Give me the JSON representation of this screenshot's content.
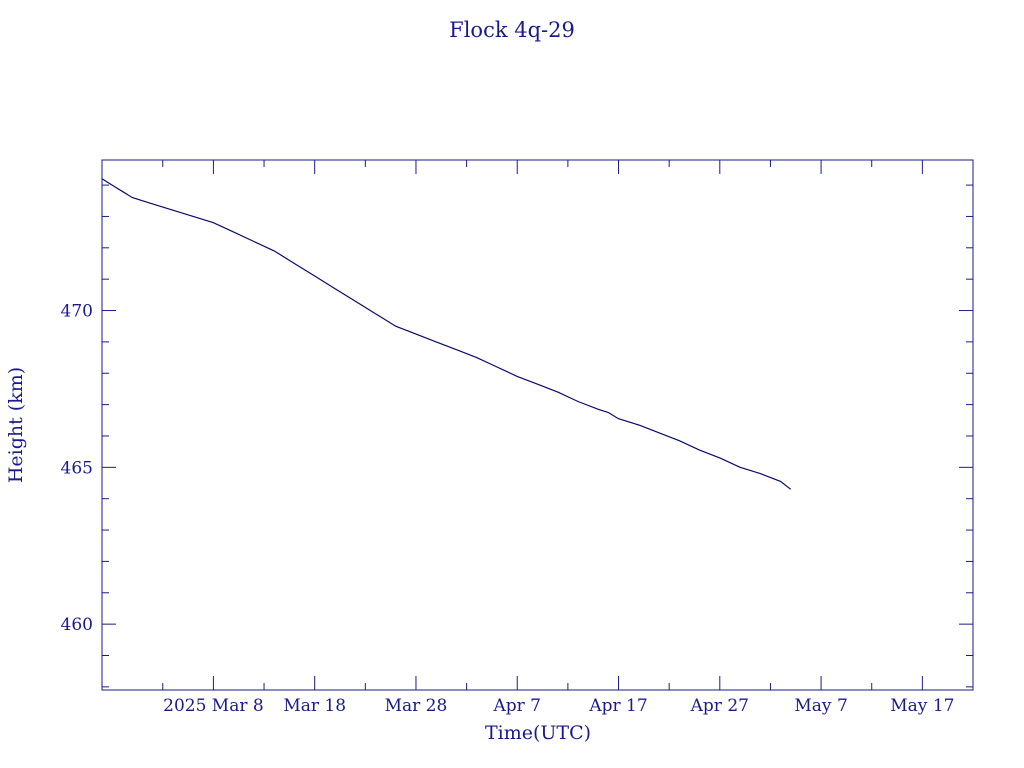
{
  "chart_data": {
    "type": "line",
    "title": "Flock 4q-29",
    "xlabel": "Time(UTC)",
    "ylabel": "Height (km)",
    "grid": false,
    "xlim": [
      "2025-02-25",
      "2025-05-22"
    ],
    "ylim": [
      457.9,
      474.8
    ],
    "x_major_ticks": [
      {
        "date": "2025-03-08",
        "label": "2025 Mar  8"
      },
      {
        "date": "2025-03-18",
        "label": "Mar 18"
      },
      {
        "date": "2025-03-28",
        "label": "Mar 28"
      },
      {
        "date": "2025-04-07",
        "label": "Apr  7"
      },
      {
        "date": "2025-04-17",
        "label": "Apr 17"
      },
      {
        "date": "2025-04-27",
        "label": "Apr 27"
      },
      {
        "date": "2025-05-07",
        "label": "May  7"
      },
      {
        "date": "2025-05-17",
        "label": "May 17"
      }
    ],
    "x_minor_ticks": [
      "2025-03-03",
      "2025-03-13",
      "2025-03-23",
      "2025-04-02",
      "2025-04-12",
      "2025-04-22",
      "2025-05-02",
      "2025-05-12"
    ],
    "y_major_ticks": [
      {
        "value": 460,
        "label": "460"
      },
      {
        "value": 465,
        "label": "465"
      },
      {
        "value": 470,
        "label": "470"
      }
    ],
    "y_minor_ticks": [
      458,
      459,
      461,
      462,
      463,
      464,
      466,
      467,
      468,
      469,
      471,
      472,
      473,
      474
    ],
    "series": [
      {
        "color": "#0a0a6e",
        "x": [
          "2025-02-25",
          "2025-02-26",
          "2025-02-28",
          "2025-03-02",
          "2025-03-04",
          "2025-03-06",
          "2025-03-08",
          "2025-03-10",
          "2025-03-12",
          "2025-03-14",
          "2025-03-16",
          "2025-03-18",
          "2025-03-20",
          "2025-03-22",
          "2025-03-24",
          "2025-03-26",
          "2025-03-28",
          "2025-03-30",
          "2025-04-01",
          "2025-04-03",
          "2025-04-05",
          "2025-04-07",
          "2025-04-09",
          "2025-04-11",
          "2025-04-13",
          "2025-04-15",
          "2025-04-16",
          "2025-04-17",
          "2025-04-19",
          "2025-04-21",
          "2025-04-23",
          "2025-04-25",
          "2025-04-27",
          "2025-04-29",
          "2025-05-01",
          "2025-05-03",
          "2025-05-04"
        ],
        "y": [
          474.2,
          474.0,
          473.6,
          473.4,
          473.2,
          473.0,
          472.8,
          472.5,
          472.2,
          471.9,
          471.5,
          471.1,
          470.7,
          470.3,
          469.9,
          469.5,
          469.25,
          469.0,
          468.75,
          468.5,
          468.2,
          467.9,
          467.65,
          467.4,
          467.1,
          466.85,
          466.75,
          466.55,
          466.35,
          466.1,
          465.85,
          465.55,
          465.3,
          465.0,
          464.8,
          464.55,
          464.3
        ]
      }
    ]
  }
}
